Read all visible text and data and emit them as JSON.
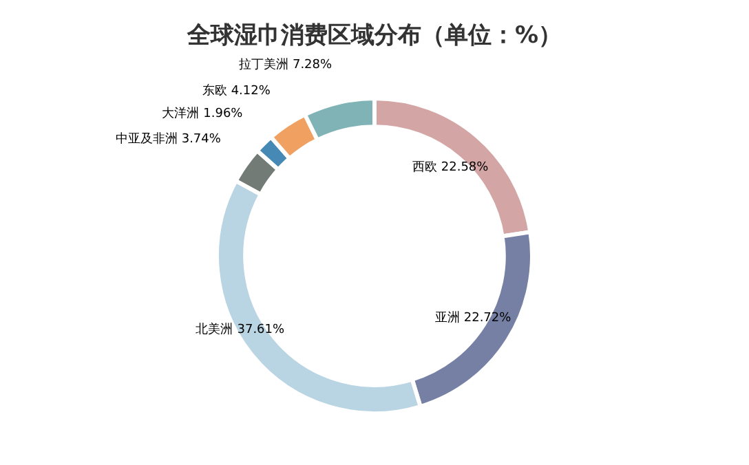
{
  "chart_data": {
    "type": "donut",
    "title": "全球湿巾消费区域分布（单位：%）",
    "categories": [
      "西欧",
      "亚洲",
      "北美洲",
      "中亚及非洲",
      "大洋洲",
      "东欧",
      "拉丁美洲"
    ],
    "values": [
      22.58,
      22.72,
      37.61,
      3.74,
      1.96,
      4.12,
      7.28
    ],
    "colors": [
      "#d4a5a5",
      "#7580a4",
      "#b9d4e3",
      "#737b77",
      "#4589b4",
      "#f0a060",
      "#7fb3b5"
    ],
    "value_labels": [
      "22.58%",
      "22.72%",
      "37.61%",
      "3.74%",
      "1.96%",
      "4.12%",
      "7.28%"
    ],
    "legend": false
  }
}
